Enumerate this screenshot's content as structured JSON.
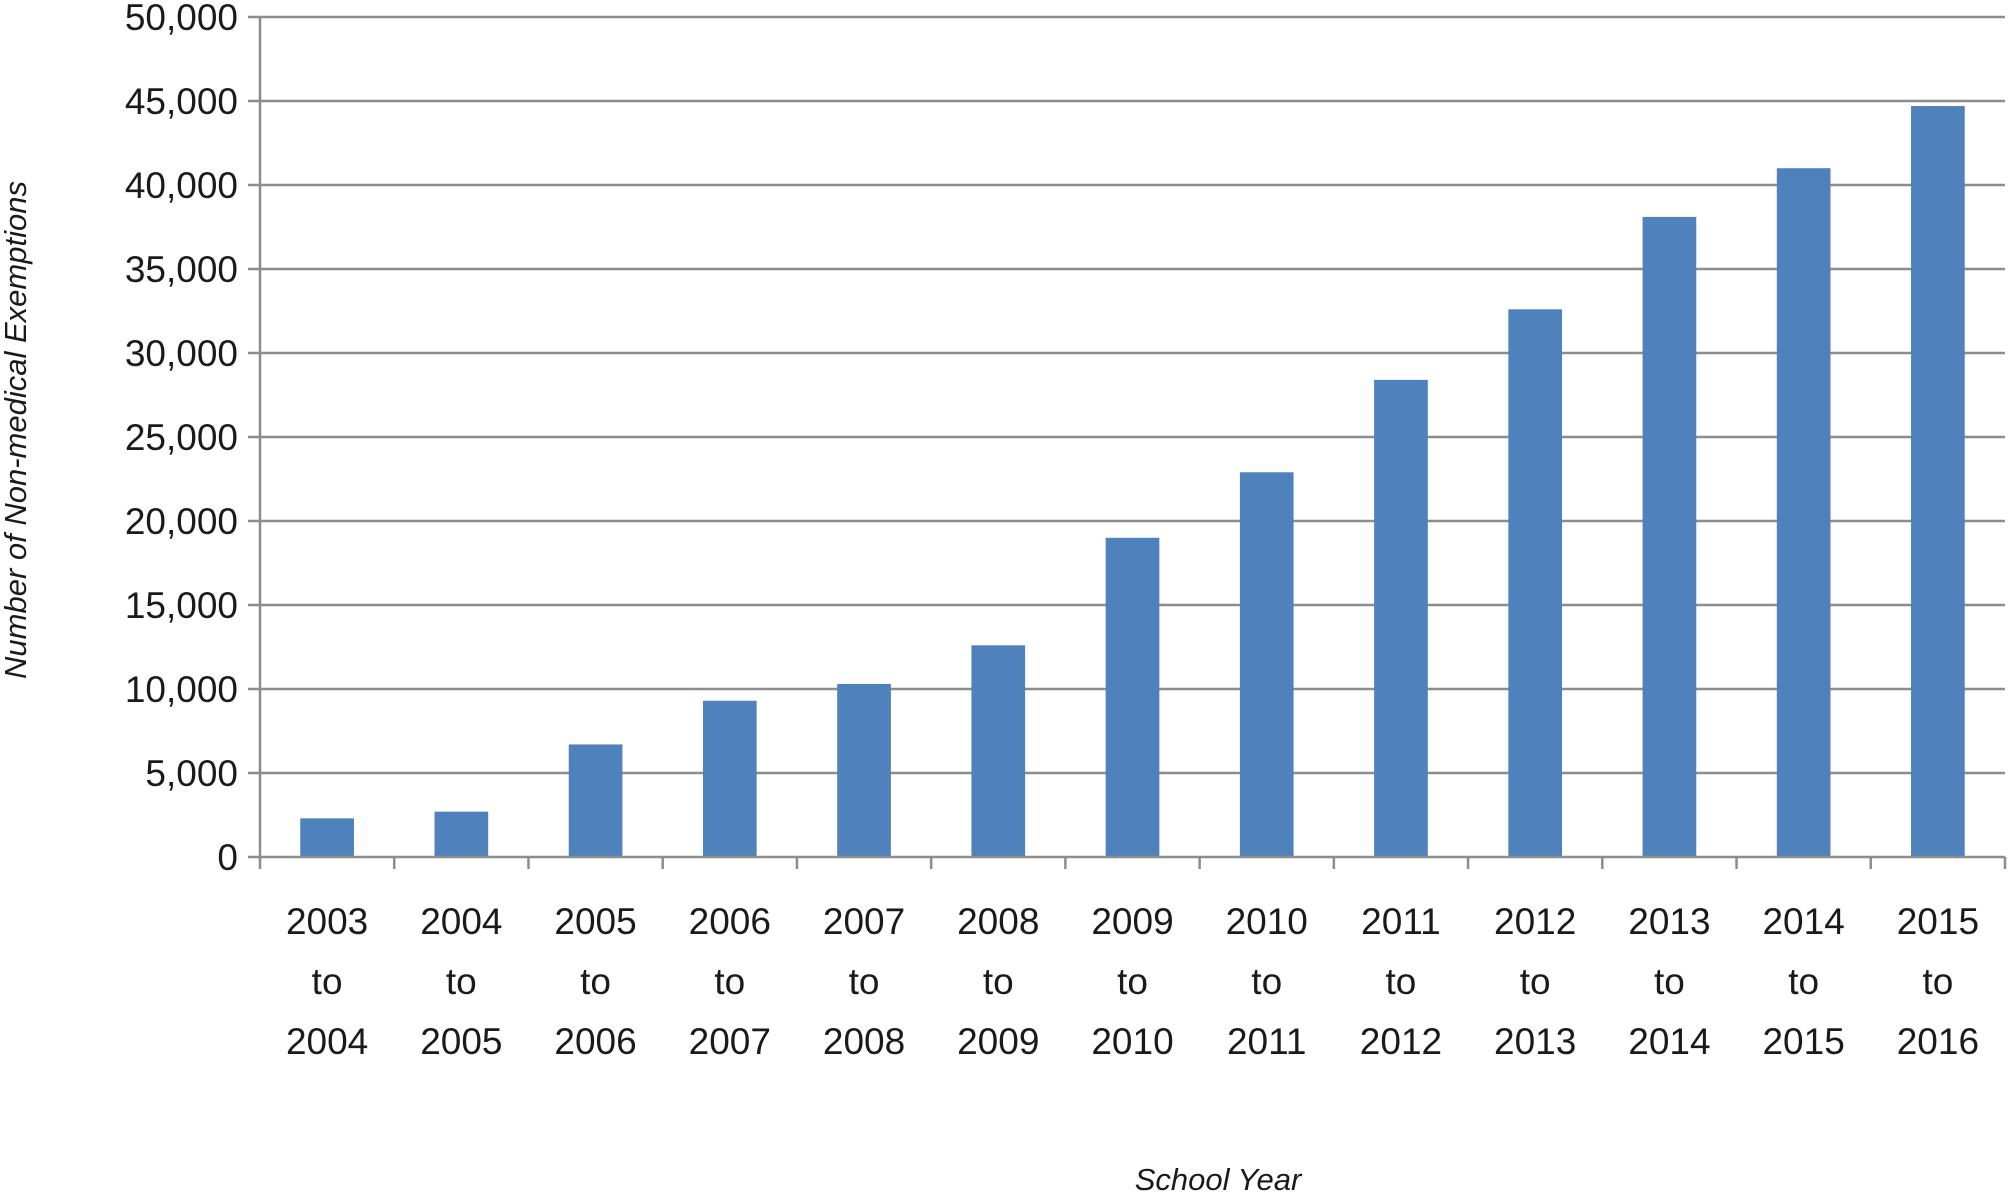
{
  "chart_data": {
    "type": "bar",
    "title": "",
    "xlabel": "School Year",
    "ylabel": "Number of Non-medical Exemptions",
    "ylim": [
      0,
      50000
    ],
    "yticks": [
      0,
      5000,
      10000,
      15000,
      20000,
      25000,
      30000,
      35000,
      40000,
      45000,
      50000
    ],
    "ytick_labels": [
      "0",
      "5,000",
      "10,000",
      "15,000",
      "20,000",
      "25,000",
      "30,000",
      "35,000",
      "40,000",
      "45,000",
      "50,000"
    ],
    "grid": true,
    "legend": "none",
    "bar_color": "#4f81bd",
    "categories": [
      [
        "2003",
        "to",
        "2004"
      ],
      [
        "2004",
        "to",
        "2005"
      ],
      [
        "2005",
        "to",
        "2006"
      ],
      [
        "2006",
        "to",
        "2007"
      ],
      [
        "2007",
        "to",
        "2008"
      ],
      [
        "2008",
        "to",
        "2009"
      ],
      [
        "2009",
        "to",
        "2010"
      ],
      [
        "2010",
        "to",
        "2011"
      ],
      [
        "2011",
        "to",
        "2012"
      ],
      [
        "2012",
        "to",
        "2013"
      ],
      [
        "2013",
        "to",
        "2014"
      ],
      [
        "2014",
        "to",
        "2015"
      ],
      [
        "2015",
        "to",
        "2016"
      ]
    ],
    "values": [
      2300,
      2700,
      6700,
      9300,
      10300,
      12600,
      19000,
      22900,
      28400,
      32600,
      38100,
      41000,
      44700
    ]
  }
}
